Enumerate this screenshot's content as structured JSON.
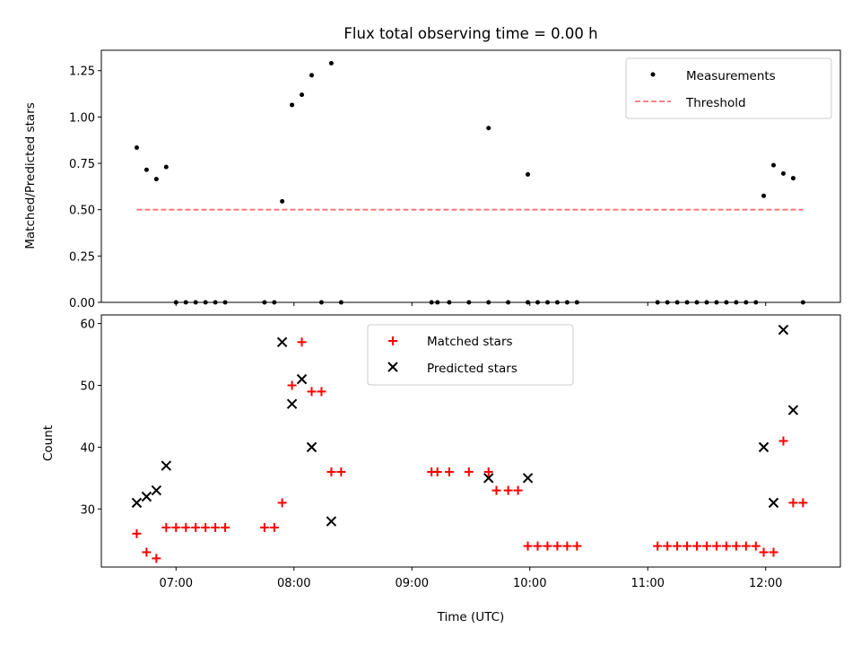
{
  "title": "Flux total observing time = 0.00 h",
  "chart_data": [
    {
      "type": "scatter",
      "ylabel": "Matched/Predicted stars",
      "xlim": [
        "06:22",
        "12:38"
      ],
      "ylim": [
        0,
        1.36
      ],
      "yticks": [
        0.0,
        0.25,
        0.5,
        0.75,
        1.0,
        1.25
      ],
      "ytick_labels": [
        "0.00",
        "0.25",
        "0.50",
        "0.75",
        "1.00",
        "1.25"
      ],
      "legend_placement": "top-right",
      "series": [
        {
          "name": "Measurements",
          "marker": "dot",
          "color": "#000000",
          "points": [
            [
              "06:40",
              0.835
            ],
            [
              "06:45",
              0.715
            ],
            [
              "06:50",
              0.665
            ],
            [
              "06:55",
              0.73
            ],
            [
              "07:00",
              0.0
            ],
            [
              "07:05",
              0.0
            ],
            [
              "07:10",
              0.0
            ],
            [
              "07:15",
              0.0
            ],
            [
              "07:20",
              0.0
            ],
            [
              "07:25",
              0.0
            ],
            [
              "07:45",
              0.0
            ],
            [
              "07:50",
              0.0
            ],
            [
              "07:54",
              0.545
            ],
            [
              "07:59",
              1.065
            ],
            [
              "08:04",
              1.12
            ],
            [
              "08:09",
              1.225
            ],
            [
              "08:14",
              0.0
            ],
            [
              "08:19",
              1.29
            ],
            [
              "08:24",
              0.0
            ],
            [
              "09:10",
              0.0
            ],
            [
              "09:13",
              0.0
            ],
            [
              "09:19",
              0.0
            ],
            [
              "09:29",
              0.0
            ],
            [
              "09:39",
              0.0
            ],
            [
              "09:39",
              0.94
            ],
            [
              "09:49",
              0.0
            ],
            [
              "09:59",
              0.0
            ],
            [
              "09:59",
              0.69
            ],
            [
              "10:04",
              0.0
            ],
            [
              "10:09",
              0.0
            ],
            [
              "10:14",
              0.0
            ],
            [
              "10:19",
              0.0
            ],
            [
              "10:24",
              0.0
            ],
            [
              "11:05",
              0.0
            ],
            [
              "11:10",
              0.0
            ],
            [
              "11:15",
              0.0
            ],
            [
              "11:20",
              0.0
            ],
            [
              "11:25",
              0.0
            ],
            [
              "11:30",
              0.0
            ],
            [
              "11:35",
              0.0
            ],
            [
              "11:40",
              0.0
            ],
            [
              "11:45",
              0.0
            ],
            [
              "11:50",
              0.0
            ],
            [
              "11:55",
              0.0
            ],
            [
              "11:59",
              0.575
            ],
            [
              "12:04",
              0.74
            ],
            [
              "12:09",
              0.695
            ],
            [
              "12:14",
              0.67
            ],
            [
              "12:19",
              0.0
            ]
          ]
        },
        {
          "name": "Threshold",
          "marker": "dashed-line",
          "color": "#ff7070",
          "points": [
            [
              "06:40",
              0.5
            ],
            [
              "12:19",
              0.5
            ]
          ]
        }
      ]
    },
    {
      "type": "scatter",
      "xlabel": "Time (UTC)",
      "ylabel": "Count",
      "xlim": [
        "06:22",
        "12:38"
      ],
      "ylim": [
        20.6,
        61.4
      ],
      "xticks": [
        "07:00",
        "08:00",
        "09:00",
        "10:00",
        "11:00",
        "12:00"
      ],
      "yticks": [
        30,
        40,
        50,
        60
      ],
      "ytick_labels": [
        "30",
        "40",
        "50",
        "60"
      ],
      "legend_placement": "top-center",
      "series": [
        {
          "name": "Matched stars",
          "marker": "plus",
          "color": "#ff0000",
          "points": [
            [
              "06:40",
              26
            ],
            [
              "06:45",
              23
            ],
            [
              "06:50",
              22
            ],
            [
              "06:55",
              27
            ],
            [
              "07:00",
              27
            ],
            [
              "07:05",
              27
            ],
            [
              "07:10",
              27
            ],
            [
              "07:15",
              27
            ],
            [
              "07:20",
              27
            ],
            [
              "07:25",
              27
            ],
            [
              "07:45",
              27
            ],
            [
              "07:50",
              27
            ],
            [
              "07:54",
              31
            ],
            [
              "07:59",
              50
            ],
            [
              "08:04",
              57
            ],
            [
              "08:09",
              49
            ],
            [
              "08:14",
              49
            ],
            [
              "08:19",
              36
            ],
            [
              "08:24",
              36
            ],
            [
              "09:10",
              36
            ],
            [
              "09:13",
              36
            ],
            [
              "09:19",
              36
            ],
            [
              "09:29",
              36
            ],
            [
              "09:39",
              36
            ],
            [
              "09:43",
              33
            ],
            [
              "09:49",
              33
            ],
            [
              "09:54",
              33
            ],
            [
              "09:59",
              24
            ],
            [
              "10:04",
              24
            ],
            [
              "10:09",
              24
            ],
            [
              "10:14",
              24
            ],
            [
              "10:19",
              24
            ],
            [
              "10:24",
              24
            ],
            [
              "11:05",
              24
            ],
            [
              "11:10",
              24
            ],
            [
              "11:15",
              24
            ],
            [
              "11:20",
              24
            ],
            [
              "11:25",
              24
            ],
            [
              "11:30",
              24
            ],
            [
              "11:35",
              24
            ],
            [
              "11:40",
              24
            ],
            [
              "11:45",
              24
            ],
            [
              "11:50",
              24
            ],
            [
              "11:55",
              24
            ],
            [
              "11:59",
              23
            ],
            [
              "12:04",
              23
            ],
            [
              "12:09",
              41
            ],
            [
              "12:14",
              31
            ],
            [
              "12:19",
              31
            ]
          ]
        },
        {
          "name": "Predicted stars",
          "marker": "x",
          "color": "#000000",
          "points": [
            [
              "06:40",
              31
            ],
            [
              "06:45",
              32
            ],
            [
              "06:50",
              33
            ],
            [
              "06:55",
              37
            ],
            [
              "07:54",
              57
            ],
            [
              "07:59",
              47
            ],
            [
              "08:04",
              51
            ],
            [
              "08:09",
              40
            ],
            [
              "08:19",
              28
            ],
            [
              "09:39",
              35
            ],
            [
              "09:59",
              35
            ],
            [
              "11:59",
              40
            ],
            [
              "12:04",
              31
            ],
            [
              "12:09",
              59
            ],
            [
              "12:14",
              46
            ]
          ]
        }
      ]
    }
  ]
}
